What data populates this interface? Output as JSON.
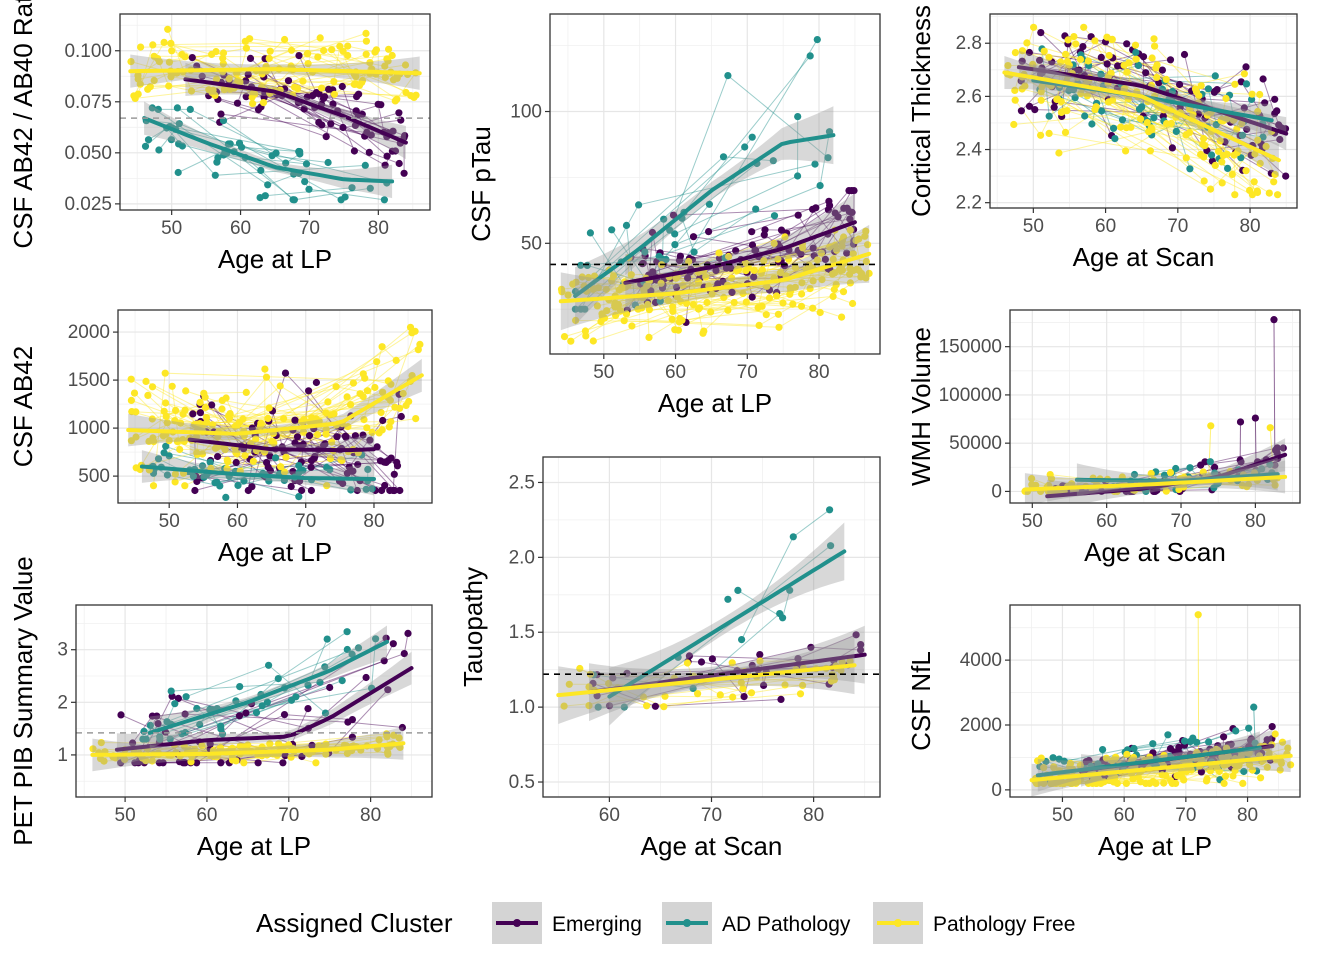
{
  "legend": {
    "title": "Assigned Cluster",
    "entries": [
      {
        "label": "Emerging",
        "color": "#440154"
      },
      {
        "label": "AD Pathology",
        "color": "#21908C"
      },
      {
        "label": "Pathology Free",
        "color": "#FDE725"
      }
    ]
  },
  "chart_data": [
    {
      "id": "ab42-ab40-ratio",
      "type": "scatter",
      "xlabel": "Age at LP",
      "ylabel": "CSF AB42 / AB40 Ratio",
      "xlim": [
        42.5,
        87.5
      ],
      "ylim": [
        0.022,
        0.118
      ],
      "xticks": [
        50,
        60,
        70,
        80
      ],
      "xtick_labels": [
        "50",
        "60",
        "70",
        "80"
      ],
      "yticks": [
        0.025,
        0.05,
        0.075,
        0.1
      ],
      "ytick_labels": [
        "0.025",
        "0.050",
        "0.075",
        "0.100"
      ],
      "threshold": {
        "y": 0.067,
        "style": "grey-dashed"
      },
      "series": [
        {
          "name": "Emerging",
          "color": "#440154",
          "x_range": [
            52,
            84
          ],
          "y_range": [
            0.04,
            0.1
          ],
          "trend": [
            [
              52,
              0.086
            ],
            [
              65,
              0.08
            ],
            [
              75,
              0.068
            ],
            [
              84,
              0.055
            ]
          ],
          "n": 80,
          "seed": 11
        },
        {
          "name": "AD Pathology",
          "color": "#21908C",
          "x_range": [
            46,
            82
          ],
          "y_range": [
            0.027,
            0.072
          ],
          "trend": [
            [
              46,
              0.067
            ],
            [
              55,
              0.055
            ],
            [
              65,
              0.043
            ],
            [
              75,
              0.037
            ],
            [
              82,
              0.036
            ]
          ],
          "n": 55,
          "seed": 12
        },
        {
          "name": "Pathology Free",
          "color": "#FDE725",
          "x_range": [
            44,
            86
          ],
          "y_range": [
            0.06,
            0.114
          ],
          "trend": [
            [
              44,
              0.09
            ],
            [
              65,
              0.091
            ],
            [
              86,
              0.089
            ]
          ],
          "n": 130,
          "seed": 13
        }
      ]
    },
    {
      "id": "ptau",
      "type": "scatter",
      "xlabel": "Age at LP",
      "ylabel": "CSF pTau",
      "xlim": [
        42.5,
        88.5
      ],
      "ylim": [
        8,
        137
      ],
      "xticks": [
        50,
        60,
        70,
        80
      ],
      "xtick_labels": [
        "50",
        "60",
        "70",
        "80"
      ],
      "yticks": [
        50,
        100
      ],
      "ytick_labels": [
        "50",
        "100"
      ],
      "threshold": {
        "y": 42,
        "style": "black-dashed"
      },
      "series": [
        {
          "name": "Emerging",
          "color": "#440154",
          "x_range": [
            53,
            85
          ],
          "y_range": [
            20,
            70
          ],
          "trend": [
            [
              53,
              35
            ],
            [
              65,
              41
            ],
            [
              75,
              48
            ],
            [
              85,
              58
            ]
          ],
          "n": 110,
          "seed": 21
        },
        {
          "name": "AD Pathology",
          "color": "#21908C",
          "x_range": [
            46,
            82
          ],
          "y_range": [
            25,
            132
          ],
          "trend": [
            [
              46,
              30
            ],
            [
              55,
              48
            ],
            [
              65,
              70
            ],
            [
              75,
              88
            ],
            [
              82,
              91
            ]
          ],
          "n": 45,
          "seed": 22
        },
        {
          "name": "Pathology Free",
          "color": "#FDE725",
          "x_range": [
            44,
            87
          ],
          "y_range": [
            12,
            55
          ],
          "trend": [
            [
              44,
              28
            ],
            [
              60,
              31
            ],
            [
              75,
              36
            ],
            [
              87,
              46
            ]
          ],
          "n": 190,
          "seed": 23
        }
      ]
    },
    {
      "id": "cortical-thickness",
      "type": "scatter",
      "xlabel": "Age at Scan",
      "ylabel": "Cortical Thickness",
      "xlim": [
        44,
        86.5
      ],
      "ylim": [
        2.18,
        2.91
      ],
      "xticks": [
        50,
        60,
        70,
        80
      ],
      "xtick_labels": [
        "50",
        "60",
        "70",
        "80"
      ],
      "yticks": [
        2.2,
        2.4,
        2.6,
        2.8
      ],
      "ytick_labels": [
        "2.2",
        "2.4",
        "2.6",
        "2.8"
      ],
      "series": [
        {
          "name": "Emerging",
          "color": "#440154",
          "x_range": [
            48,
            85
          ],
          "y_range": [
            2.3,
            2.84
          ],
          "trend": [
            [
              48,
              2.71
            ],
            [
              65,
              2.64
            ],
            [
              85,
              2.46
            ]
          ],
          "n": 90,
          "seed": 31
        },
        {
          "name": "AD Pathology",
          "color": "#21908C",
          "x_range": [
            50,
            83
          ],
          "y_range": [
            2.25,
            2.8
          ],
          "trend": [
            [
              50,
              2.66
            ],
            [
              65,
              2.6
            ],
            [
              83,
              2.51
            ]
          ],
          "n": 60,
          "seed": 32
        },
        {
          "name": "Pathology Free",
          "color": "#FDE725",
          "x_range": [
            46,
            84
          ],
          "y_range": [
            2.23,
            2.86
          ],
          "trend": [
            [
              46,
              2.69
            ],
            [
              65,
              2.6
            ],
            [
              84,
              2.36
            ]
          ],
          "n": 170,
          "seed": 33
        }
      ]
    },
    {
      "id": "ab42",
      "type": "scatter",
      "xlabel": "Age at LP",
      "ylabel": "CSF AB42",
      "xlim": [
        42.5,
        88.5
      ],
      "ylim": [
        220,
        2230
      ],
      "xticks": [
        50,
        60,
        70,
        80
      ],
      "xtick_labels": [
        "50",
        "60",
        "70",
        "80"
      ],
      "yticks": [
        500,
        1000,
        1500,
        2000
      ],
      "ytick_labels": [
        "500",
        "1000",
        "1500",
        "2000"
      ],
      "series": [
        {
          "name": "Emerging",
          "color": "#440154",
          "x_range": [
            53,
            84
          ],
          "y_range": [
            350,
            2150
          ],
          "trend": [
            [
              53,
              880
            ],
            [
              65,
              780
            ],
            [
              76,
              770
            ],
            [
              80,
              780
            ]
          ],
          "n": 110,
          "seed": 41
        },
        {
          "name": "AD Pathology",
          "color": "#21908C",
          "x_range": [
            46,
            80
          ],
          "y_range": [
            250,
            900
          ],
          "trend": [
            [
              46,
              600
            ],
            [
              60,
              520
            ],
            [
              70,
              480
            ],
            [
              80,
              470
            ]
          ],
          "n": 50,
          "seed": 42
        },
        {
          "name": "Pathology Free",
          "color": "#FDE725",
          "x_range": [
            44,
            87
          ],
          "y_range": [
            400,
            2050
          ],
          "trend": [
            [
              44,
              980
            ],
            [
              60,
              940
            ],
            [
              75,
              1050
            ],
            [
              87,
              1550
            ]
          ],
          "n": 180,
          "seed": 43
        }
      ]
    },
    {
      "id": "wmh",
      "type": "scatter",
      "xlabel": "Age at Scan",
      "ylabel": "WMH Volume",
      "xlim": [
        47,
        86
      ],
      "ylim": [
        -12000,
        188000
      ],
      "xticks": [
        50,
        60,
        70,
        80
      ],
      "xtick_labels": [
        "50",
        "60",
        "70",
        "80"
      ],
      "yticks": [
        0,
        50000,
        100000,
        150000
      ],
      "ytick_labels": [
        "0",
        "50000",
        "100000",
        "150000"
      ],
      "series": [
        {
          "name": "Emerging",
          "color": "#440154",
          "x_range": [
            52,
            84
          ],
          "y_range": [
            0,
            45000
          ],
          "trend": [
            [
              52,
              -5000
            ],
            [
              65,
              3000
            ],
            [
              75,
              15000
            ],
            [
              84,
              38000
            ]
          ],
          "n": 45,
          "seed": 51
        },
        {
          "name": "AD Pathology",
          "color": "#21908C",
          "x_range": [
            56,
            83
          ],
          "y_range": [
            0,
            40000
          ],
          "trend": [
            [
              56,
              12000
            ],
            [
              70,
              11000
            ],
            [
              83,
              18000
            ]
          ],
          "n": 30,
          "seed": 52
        },
        {
          "name": "Pathology Free",
          "color": "#FDE725",
          "x_range": [
            49,
            84
          ],
          "y_range": [
            0,
            40000
          ],
          "trend": [
            [
              49,
              2000
            ],
            [
              65,
              7000
            ],
            [
              84,
              15000
            ]
          ],
          "n": 70,
          "seed": 53
        }
      ],
      "outliers": [
        {
          "series": "Emerging",
          "x": 82.5,
          "y": 178000
        },
        {
          "series": "Emerging",
          "x": 80,
          "y": 76000
        },
        {
          "series": "Emerging",
          "x": 78,
          "y": 72000
        },
        {
          "series": "Pathology Free",
          "x": 82,
          "y": 66000
        },
        {
          "series": "Pathology Free",
          "x": 74,
          "y": 68000
        }
      ]
    },
    {
      "id": "tauopathy",
      "type": "scatter",
      "xlabel": "Age at Scan",
      "ylabel": "Tauopathy",
      "xlim": [
        53.5,
        86.5
      ],
      "ylim": [
        0.4,
        2.67
      ],
      "xticks": [
        60,
        70,
        80
      ],
      "xtick_labels": [
        "60",
        "70",
        "80"
      ],
      "yticks": [
        0.5,
        1.0,
        1.5,
        2.0,
        2.5
      ],
      "ytick_labels": [
        "0.5",
        "1.0",
        "1.5",
        "2.0",
        "2.5"
      ],
      "threshold": {
        "y": 1.22,
        "style": "black-dashed"
      },
      "series": [
        {
          "name": "Emerging",
          "color": "#440154",
          "x_range": [
            58,
            85
          ],
          "y_range": [
            0.95,
            1.68
          ],
          "trend": [
            [
              58,
              1.1
            ],
            [
              85,
              1.35
            ]
          ],
          "n": 30,
          "seed": 61
        },
        {
          "name": "AD Pathology",
          "color": "#21908C",
          "x_range": [
            58,
            83
          ],
          "y_range": [
            1.0,
            2.57
          ],
          "trend": [
            [
              60,
              1.07
            ],
            [
              83,
              2.04
            ]
          ],
          "n": 14,
          "seed": 62
        },
        {
          "name": "Pathology Free",
          "color": "#FDE725",
          "x_range": [
            55,
            84
          ],
          "y_range": [
            0.98,
            1.45
          ],
          "trend": [
            [
              55,
              1.08
            ],
            [
              84,
              1.28
            ]
          ],
          "n": 45,
          "seed": 63
        }
      ]
    },
    {
      "id": "pib",
      "type": "scatter",
      "xlabel": "Age at LP",
      "ylabel": "PET PIB Summary Value",
      "xlim": [
        44,
        87.5
      ],
      "ylim": [
        0.2,
        3.85
      ],
      "xticks": [
        50,
        60,
        70,
        80
      ],
      "xtick_labels": [
        "50",
        "60",
        "70",
        "80"
      ],
      "yticks": [
        1,
        2,
        3
      ],
      "ytick_labels": [
        "1",
        "2",
        "3"
      ],
      "threshold": {
        "y": 1.42,
        "style": "grey-dashed"
      },
      "series": [
        {
          "name": "Emerging",
          "color": "#440154",
          "x_range": [
            49,
            85
          ],
          "y_range": [
            0.85,
            3.4
          ],
          "trend": [
            [
              49,
              1.1
            ],
            [
              60,
              1.28
            ],
            [
              70,
              1.35
            ],
            [
              75,
              1.7
            ],
            [
              85,
              2.65
            ]
          ],
          "n": 55,
          "seed": 71
        },
        {
          "name": "AD Pathology",
          "color": "#21908C",
          "x_range": [
            52,
            82
          ],
          "y_range": [
            1.3,
            3.4
          ],
          "trend": [
            [
              53,
              1.42
            ],
            [
              65,
              2.0
            ],
            [
              75,
              2.6
            ],
            [
              82,
              3.15
            ]
          ],
          "n": 45,
          "seed": 72
        },
        {
          "name": "Pathology Free",
          "color": "#FDE725",
          "x_range": [
            46,
            84
          ],
          "y_range": [
            0.85,
            1.4
          ],
          "trend": [
            [
              46,
              1.0
            ],
            [
              60,
              1.02
            ],
            [
              75,
              1.1
            ],
            [
              84,
              1.22
            ]
          ],
          "n": 110,
          "seed": 73
        }
      ]
    },
    {
      "id": "nfl",
      "type": "scatter",
      "xlabel": "Age at LP",
      "ylabel": "CSF NfL",
      "xlim": [
        41.5,
        88.5
      ],
      "ylim": [
        -220,
        5700
      ],
      "xticks": [
        50,
        60,
        70,
        80
      ],
      "xtick_labels": [
        "50",
        "60",
        "70",
        "80"
      ],
      "yticks": [
        0,
        2000,
        4000
      ],
      "ytick_labels": [
        "0",
        "2000",
        "4000"
      ],
      "series": [
        {
          "name": "Emerging",
          "color": "#440154",
          "x_range": [
            53,
            84
          ],
          "y_range": [
            350,
            1950
          ],
          "trend": [
            [
              53,
              600
            ],
            [
              84,
              1350
            ]
          ],
          "n": 80,
          "seed": 81
        },
        {
          "name": "AD Pathology",
          "color": "#21908C",
          "x_range": [
            46,
            82
          ],
          "y_range": [
            300,
            2600
          ],
          "trend": [
            [
              46,
              450
            ],
            [
              82,
              1300
            ]
          ],
          "n": 50,
          "seed": 82
        },
        {
          "name": "Pathology Free",
          "color": "#FDE725",
          "x_range": [
            45,
            87
          ],
          "y_range": [
            200,
            2100
          ],
          "trend": [
            [
              45,
              300
            ],
            [
              87,
              1050
            ]
          ],
          "n": 170,
          "seed": 83
        }
      ],
      "outliers": [
        {
          "series": "Pathology Free",
          "x": 72,
          "y": 5400
        },
        {
          "series": "AD Pathology",
          "x": 81,
          "y": 2550
        }
      ]
    }
  ]
}
